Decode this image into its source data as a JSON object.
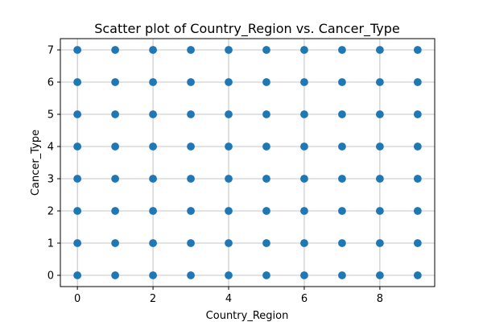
{
  "chart_data": {
    "type": "scatter",
    "title": "Scatter plot of Country_Region vs. Cancer_Type",
    "xlabel": "Country_Region",
    "ylabel": "Cancer_Type",
    "x_ticks": [
      0,
      2,
      4,
      6,
      8
    ],
    "y_ticks": [
      0,
      1,
      2,
      3,
      4,
      5,
      6,
      7
    ],
    "xlim": [
      -0.45,
      9.45
    ],
    "ylim": [
      -0.35,
      7.35
    ],
    "grid": true,
    "marker_color": "#1f77b4",
    "series": [
      {
        "x": [
          0,
          0,
          0,
          0,
          0,
          0,
          0,
          0,
          1,
          1,
          1,
          1,
          1,
          1,
          1,
          1,
          2,
          2,
          2,
          2,
          2,
          2,
          2,
          2,
          3,
          3,
          3,
          3,
          3,
          3,
          3,
          3,
          4,
          4,
          4,
          4,
          4,
          4,
          4,
          4,
          5,
          5,
          5,
          5,
          5,
          5,
          5,
          5,
          6,
          6,
          6,
          6,
          6,
          6,
          6,
          6,
          7,
          7,
          7,
          7,
          7,
          7,
          7,
          7,
          8,
          8,
          8,
          8,
          8,
          8,
          8,
          8,
          9,
          9,
          9,
          9,
          9,
          9,
          9,
          9
        ],
        "y": [
          0,
          1,
          2,
          3,
          4,
          5,
          6,
          7,
          0,
          1,
          2,
          3,
          4,
          5,
          6,
          7,
          0,
          1,
          2,
          3,
          4,
          5,
          6,
          7,
          0,
          1,
          2,
          3,
          4,
          5,
          6,
          7,
          0,
          1,
          2,
          3,
          4,
          5,
          6,
          7,
          0,
          1,
          2,
          3,
          4,
          5,
          6,
          7,
          0,
          1,
          2,
          3,
          4,
          5,
          6,
          7,
          0,
          1,
          2,
          3,
          4,
          5,
          6,
          7,
          0,
          1,
          2,
          3,
          4,
          5,
          6,
          7,
          0,
          1,
          2,
          3,
          4,
          5,
          6,
          7
        ]
      }
    ]
  }
}
